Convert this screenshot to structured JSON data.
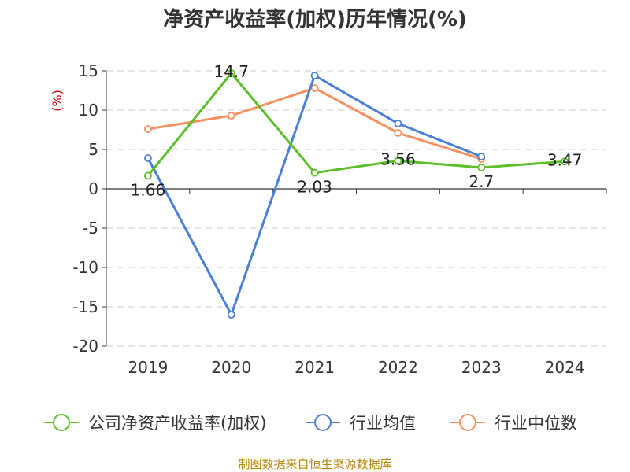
{
  "chart_data": {
    "type": "line",
    "title": "净资产收益率(加权)历年情况(%)",
    "ylabel": "(%)",
    "categories": [
      "2019",
      "2020",
      "2021",
      "2022",
      "2023",
      "2024"
    ],
    "ylim": [
      -20,
      15
    ],
    "yticks": [
      "15",
      "10",
      "5",
      "0",
      "-5",
      "-10",
      "-15",
      "-20"
    ],
    "grid": true,
    "legend_position": "bottom",
    "series": [
      {
        "name": "公司净资产收益率(加权)",
        "color": "#5cbf2a",
        "values": [
          1.66,
          14.7,
          2.03,
          3.56,
          2.7,
          3.47
        ],
        "labels": [
          "1.66",
          "14.7",
          "2.03",
          "3.56",
          "2.7",
          "3.47"
        ]
      },
      {
        "name": "行业均值",
        "color": "#4a7fd4",
        "values": [
          3.9,
          -16.0,
          14.4,
          8.3,
          4.1,
          null
        ]
      },
      {
        "name": "行业中位数",
        "color": "#f7905d",
        "values": [
          7.6,
          9.3,
          12.8,
          7.1,
          3.8,
          null
        ]
      }
    ]
  },
  "source": "制图数据来自恒生聚源数据库"
}
